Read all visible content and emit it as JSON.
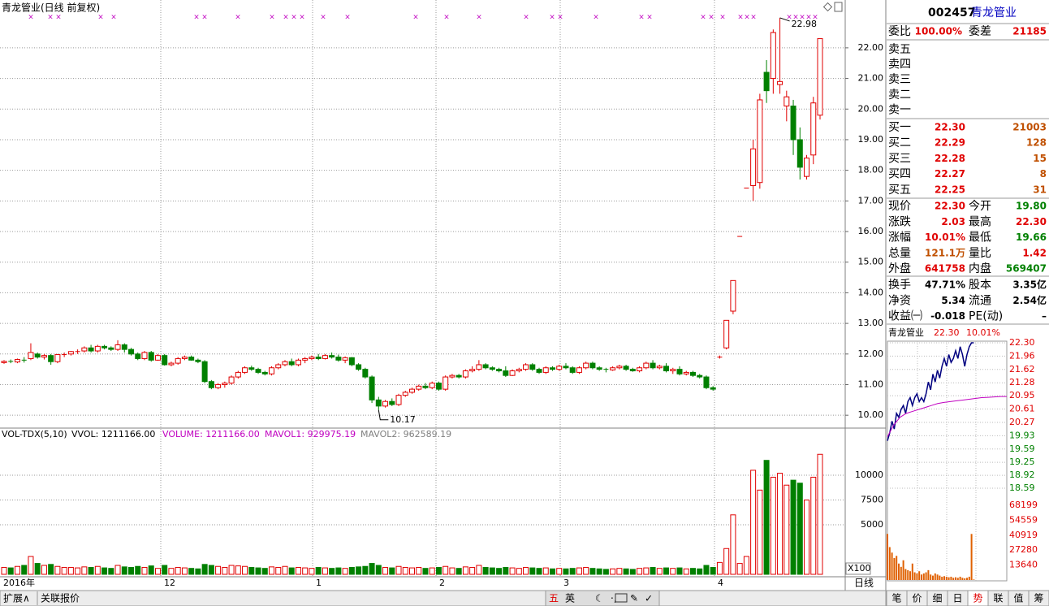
{
  "kline": {
    "title": "青龙管业(日线 前复权)",
    "ylim": [
      9.58,
      23.35
    ],
    "yticks": [
      {
        "value": 10,
        "label": "10.00"
      },
      {
        "value": 11,
        "label": "11.00"
      },
      {
        "value": 12,
        "label": "12.00"
      },
      {
        "value": 13,
        "label": "13.00"
      },
      {
        "value": 14,
        "label": "14.00"
      },
      {
        "value": 15,
        "label": "15.00"
      },
      {
        "value": 16,
        "label": "16.00"
      },
      {
        "value": 17,
        "label": "17.00"
      },
      {
        "value": 18,
        "label": "18.00"
      },
      {
        "value": 19,
        "label": "19.00"
      },
      {
        "value": 20,
        "label": "20.00"
      },
      {
        "value": 21,
        "label": "21.00"
      },
      {
        "value": 22,
        "label": "22.00"
      }
    ],
    "high_label": "22.98",
    "low_label": "10.17",
    "marker": "×",
    "vol_header": [
      "VOL-TDX(5,10)",
      "VVOL: 1211166.00",
      "VOLUME: 1211166.00",
      "MAVOL1: 929975.19",
      "MAVOL2: 962589.19"
    ],
    "vol_ylim": [
      0,
      13280
    ],
    "vol_yticks": [
      10000,
      7500,
      5000
    ],
    "vol_unit": "X100",
    "dates": [
      "2016年",
      "12",
      "1",
      "2",
      "3",
      "4"
    ],
    "period": "日线",
    "candles": [
      [
        11.72,
        11.8,
        11.68,
        11.76,
        700
      ],
      [
        11.76,
        11.82,
        11.7,
        11.74,
        650
      ],
      [
        11.74,
        11.85,
        11.7,
        11.82,
        800
      ],
      [
        11.8,
        11.9,
        11.72,
        11.78,
        900
      ],
      [
        11.85,
        12.35,
        11.8,
        12.05,
        1800
      ],
      [
        12.0,
        12.05,
        11.85,
        11.9,
        1100
      ],
      [
        11.9,
        12.0,
        11.82,
        11.95,
        900
      ],
      [
        11.95,
        12.0,
        11.65,
        11.75,
        1000
      ],
      [
        11.75,
        12.0,
        11.7,
        11.98,
        800
      ],
      [
        11.98,
        12.05,
        11.9,
        12.0,
        700
      ],
      [
        12.0,
        12.1,
        11.95,
        12.08,
        700
      ],
      [
        12.08,
        12.15,
        12.0,
        12.1,
        650
      ],
      [
        12.1,
        12.25,
        12.05,
        12.2,
        750
      ],
      [
        12.2,
        12.3,
        12.05,
        12.1,
        700
      ],
      [
        12.1,
        12.3,
        12.05,
        12.25,
        800
      ],
      [
        12.25,
        12.3,
        12.15,
        12.2,
        650
      ],
      [
        12.2,
        12.25,
        12.1,
        12.15,
        600
      ],
      [
        12.15,
        12.45,
        12.1,
        12.3,
        900
      ],
      [
        12.3,
        12.35,
        12.05,
        12.15,
        750
      ],
      [
        12.15,
        12.2,
        11.95,
        12.0,
        700
      ],
      [
        12.0,
        12.05,
        11.8,
        11.85,
        800
      ],
      [
        11.85,
        12.1,
        11.8,
        12.05,
        700
      ],
      [
        12.05,
        12.1,
        11.75,
        11.8,
        850
      ],
      [
        11.8,
        12.0,
        11.78,
        11.95,
        600
      ],
      [
        11.95,
        12.0,
        11.62,
        11.65,
        900
      ],
      [
        11.65,
        11.75,
        11.6,
        11.7,
        600
      ],
      [
        11.7,
        11.9,
        11.65,
        11.85,
        700
      ],
      [
        11.85,
        11.95,
        11.8,
        11.9,
        650
      ],
      [
        11.9,
        11.95,
        11.78,
        11.8,
        600
      ],
      [
        11.8,
        11.85,
        11.7,
        11.75,
        550
      ],
      [
        11.75,
        11.8,
        11.05,
        11.1,
        1000
      ],
      [
        11.1,
        11.15,
        10.85,
        10.9,
        900
      ],
      [
        10.9,
        11.05,
        10.85,
        11.0,
        800
      ],
      [
        11.0,
        11.1,
        10.9,
        11.05,
        700
      ],
      [
        11.05,
        11.3,
        11.0,
        11.25,
        900
      ],
      [
        11.25,
        11.45,
        11.2,
        11.4,
        850
      ],
      [
        11.4,
        11.6,
        11.35,
        11.55,
        800
      ],
      [
        11.55,
        11.62,
        11.45,
        11.5,
        700
      ],
      [
        11.5,
        11.55,
        11.35,
        11.4,
        650
      ],
      [
        11.4,
        11.45,
        11.3,
        11.35,
        600
      ],
      [
        11.35,
        11.6,
        11.3,
        11.55,
        750
      ],
      [
        11.55,
        11.7,
        11.5,
        11.65,
        700
      ],
      [
        11.65,
        11.8,
        11.6,
        11.75,
        800
      ],
      [
        11.75,
        11.85,
        11.6,
        11.65,
        650
      ],
      [
        11.65,
        11.85,
        11.6,
        11.8,
        700
      ],
      [
        11.8,
        11.9,
        11.7,
        11.85,
        650
      ],
      [
        11.85,
        11.95,
        11.8,
        11.9,
        600
      ],
      [
        11.9,
        12.0,
        11.8,
        11.85,
        700
      ],
      [
        11.85,
        12.0,
        11.82,
        11.95,
        650
      ],
      [
        11.95,
        12.05,
        11.85,
        11.9,
        600
      ],
      [
        11.9,
        11.98,
        11.75,
        11.8,
        650
      ],
      [
        11.8,
        11.92,
        11.7,
        11.88,
        600
      ],
      [
        11.88,
        11.9,
        11.6,
        11.65,
        700
      ],
      [
        11.65,
        11.7,
        11.45,
        11.5,
        750
      ],
      [
        11.5,
        11.55,
        11.2,
        11.25,
        800
      ],
      [
        11.25,
        11.3,
        10.4,
        10.5,
        1100
      ],
      [
        10.5,
        10.6,
        10.17,
        10.3,
        900
      ],
      [
        10.3,
        10.5,
        10.25,
        10.45,
        700
      ],
      [
        10.45,
        10.55,
        10.3,
        10.35,
        650
      ],
      [
        10.35,
        10.7,
        10.3,
        10.65,
        800
      ],
      [
        10.65,
        10.8,
        10.6,
        10.75,
        700
      ],
      [
        10.75,
        10.9,
        10.7,
        10.85,
        650
      ],
      [
        10.85,
        11.0,
        10.8,
        10.95,
        700
      ],
      [
        10.95,
        11.05,
        10.85,
        10.9,
        600
      ],
      [
        10.9,
        11.1,
        10.85,
        11.05,
        650
      ],
      [
        11.05,
        11.1,
        10.8,
        10.85,
        700
      ],
      [
        10.85,
        11.3,
        10.8,
        11.25,
        800
      ],
      [
        11.25,
        11.35,
        11.2,
        11.3,
        650
      ],
      [
        11.3,
        11.35,
        11.2,
        11.25,
        600
      ],
      [
        11.25,
        11.5,
        11.2,
        11.45,
        750
      ],
      [
        11.45,
        11.6,
        11.4,
        11.5,
        700
      ],
      [
        11.5,
        11.8,
        11.45,
        11.65,
        900
      ],
      [
        11.65,
        11.7,
        11.5,
        11.55,
        700
      ],
      [
        11.55,
        11.6,
        11.45,
        11.5,
        650
      ],
      [
        11.5,
        11.55,
        11.4,
        11.45,
        600
      ],
      [
        11.45,
        11.6,
        11.25,
        11.3,
        700
      ],
      [
        11.3,
        11.5,
        11.28,
        11.45,
        650
      ],
      [
        11.45,
        11.55,
        11.4,
        11.5,
        600
      ],
      [
        11.5,
        11.7,
        11.45,
        11.65,
        700
      ],
      [
        11.65,
        11.7,
        11.45,
        11.5,
        650
      ],
      [
        11.5,
        11.55,
        11.35,
        11.4,
        600
      ],
      [
        11.4,
        11.6,
        11.35,
        11.55,
        650
      ],
      [
        11.55,
        11.6,
        11.45,
        11.5,
        550
      ],
      [
        11.5,
        11.65,
        11.45,
        11.6,
        600
      ],
      [
        11.6,
        11.7,
        11.5,
        11.55,
        550
      ],
      [
        11.55,
        11.6,
        11.35,
        11.4,
        600
      ],
      [
        11.4,
        11.6,
        11.35,
        11.55,
        650
      ],
      [
        11.55,
        11.75,
        11.5,
        11.7,
        700
      ],
      [
        11.7,
        11.75,
        11.5,
        11.55,
        600
      ],
      [
        11.55,
        11.6,
        11.45,
        11.5,
        550
      ],
      [
        11.5,
        11.55,
        11.4,
        11.48,
        500
      ],
      [
        11.48,
        11.6,
        11.45,
        11.55,
        550
      ],
      [
        11.55,
        11.65,
        11.5,
        11.6,
        600
      ],
      [
        11.6,
        11.65,
        11.45,
        11.5,
        550
      ],
      [
        11.5,
        11.55,
        11.42,
        11.45,
        500
      ],
      [
        11.45,
        11.6,
        11.4,
        11.55,
        600
      ],
      [
        11.55,
        11.75,
        11.5,
        11.7,
        650
      ],
      [
        11.7,
        11.8,
        11.5,
        11.55,
        700
      ],
      [
        11.55,
        11.65,
        11.5,
        11.6,
        600
      ],
      [
        11.6,
        11.7,
        11.4,
        11.45,
        650
      ],
      [
        11.45,
        11.55,
        11.35,
        11.5,
        600
      ],
      [
        11.5,
        11.6,
        11.3,
        11.35,
        650
      ],
      [
        11.35,
        11.45,
        11.3,
        11.4,
        550
      ],
      [
        11.4,
        11.45,
        11.25,
        11.3,
        600
      ],
      [
        11.3,
        11.35,
        11.2,
        11.25,
        550
      ],
      [
        11.25,
        11.3,
        10.85,
        10.9,
        900
      ],
      [
        10.9,
        10.95,
        10.8,
        10.85,
        700
      ],
      [
        11.9,
        11.95,
        11.85,
        11.9,
        1200
      ],
      [
        12.2,
        13.1,
        12.15,
        13.1,
        2600
      ],
      [
        13.4,
        14.4,
        13.3,
        14.4,
        6000
      ],
      [
        15.84,
        15.84,
        15.84,
        15.84,
        1100
      ],
      [
        17.42,
        17.42,
        17.42,
        17.42,
        1800
      ],
      [
        17.5,
        19.0,
        17.0,
        18.7,
        10500
      ],
      [
        17.6,
        20.5,
        17.4,
        20.3,
        8500
      ],
      [
        21.2,
        21.6,
        20.2,
        20.6,
        11500
      ],
      [
        21.0,
        22.6,
        20.5,
        22.5,
        9800
      ],
      [
        20.8,
        22.98,
        20.5,
        20.9,
        10200
      ],
      [
        20.1,
        20.6,
        19.6,
        20.4,
        9000
      ],
      [
        20.1,
        20.3,
        18.5,
        19.0,
        9500
      ],
      [
        19.0,
        19.4,
        17.7,
        18.1,
        9200
      ],
      [
        17.8,
        18.5,
        17.7,
        18.4,
        7500
      ],
      [
        18.5,
        20.4,
        18.2,
        20.2,
        9800
      ],
      [
        19.8,
        22.3,
        19.66,
        22.3,
        12111
      ]
    ]
  },
  "quote": {
    "code": "002457",
    "name": "青龙管业",
    "weibi": [
      "委比",
      "100.00%",
      "委差",
      "21185"
    ],
    "asks": [
      "卖五",
      "卖四",
      "卖三",
      "卖二",
      "卖一"
    ],
    "bids": [
      [
        "买一",
        "22.30",
        "21003"
      ],
      [
        "买二",
        "22.29",
        "128"
      ],
      [
        "买三",
        "22.28",
        "15"
      ],
      [
        "买四",
        "22.27",
        "8"
      ],
      [
        "买五",
        "22.25",
        "31"
      ]
    ],
    "stats": [
      [
        "现价",
        "22.30",
        "今开",
        "19.80"
      ],
      [
        "涨跌",
        "2.03",
        "最高",
        "22.30"
      ],
      [
        "涨幅",
        "10.01%",
        "最低",
        "19.66"
      ],
      [
        "总量",
        "121.1万",
        "量比",
        "1.42"
      ],
      [
        "外盘",
        "641758",
        "内盘",
        "569407"
      ]
    ],
    "stats2": [
      [
        "换手",
        "47.71%",
        "股本",
        "3.35亿"
      ],
      [
        "净资",
        "5.34",
        "流通",
        "2.54亿"
      ],
      [
        "收益㈠",
        "-0.018",
        "PE(动)",
        "–"
      ]
    ]
  },
  "intraday": {
    "header": [
      "青龙管业",
      "22.30",
      "10.01%"
    ],
    "ylim": [
      18.59,
      22.3
    ],
    "yticks": [
      {
        "value": 22.3,
        "label": "22.30"
      },
      {
        "value": 21.96,
        "label": "21.96"
      },
      {
        "value": 21.62,
        "label": "21.62"
      },
      {
        "value": 21.28,
        "label": "21.28"
      },
      {
        "value": 20.95,
        "label": "20.95"
      },
      {
        "value": 20.61,
        "label": "20.61"
      },
      {
        "value": 20.27,
        "label": "20.27"
      },
      {
        "value": 19.93,
        "label": "19.93"
      },
      {
        "value": 19.59,
        "label": "19.59"
      },
      {
        "value": 19.25,
        "label": "19.25"
      },
      {
        "value": 18.92,
        "label": "18.92"
      },
      {
        "value": 18.59,
        "label": "18.59"
      }
    ],
    "vol_ylim": [
      0,
      80000
    ],
    "vol_yticks": [
      68199,
      54559,
      40919,
      27280,
      13640
    ],
    "price": [
      19.8,
      20.0,
      20.3,
      20.1,
      20.5,
      20.4,
      20.6,
      20.7,
      20.5,
      20.8,
      20.9,
      20.7,
      20.9,
      21.0,
      20.8,
      20.9,
      20.8,
      21.0,
      21.3,
      21.1,
      21.5,
      21.3,
      21.6,
      21.4,
      21.7,
      21.9,
      21.7,
      22.0,
      21.8,
      21.9,
      22.1,
      21.9,
      22.2,
      22.0,
      21.7,
      22.0,
      22.2,
      22.3,
      22.3
    ],
    "avg": [
      19.9,
      20.2,
      20.4,
      20.5,
      20.55,
      20.6,
      20.65,
      20.7,
      20.75,
      20.78,
      20.8,
      20.82,
      20.84,
      20.86,
      20.88,
      20.9,
      20.91,
      20.92,
      20.93,
      20.93
    ],
    "volume": [
      42000,
      30000,
      25000,
      20000,
      22000,
      15000,
      12000,
      18000,
      10000,
      9000,
      8000,
      15000,
      7000,
      6000,
      8000,
      5000,
      6000,
      7000,
      9000,
      5000,
      4000,
      6000,
      5000,
      4000,
      3000,
      3500,
      3000,
      2500,
      3000,
      2000,
      2500,
      2000,
      3000,
      2000,
      1500,
      2000,
      3000,
      42000,
      500
    ]
  },
  "toolbar": [
    "五",
    "英"
  ],
  "bottom_tabs": [
    "扩展∧",
    "关联报价"
  ],
  "side_tabs": [
    "笔",
    "价",
    "细",
    "日",
    "势",
    "联",
    "值",
    "筹"
  ]
}
